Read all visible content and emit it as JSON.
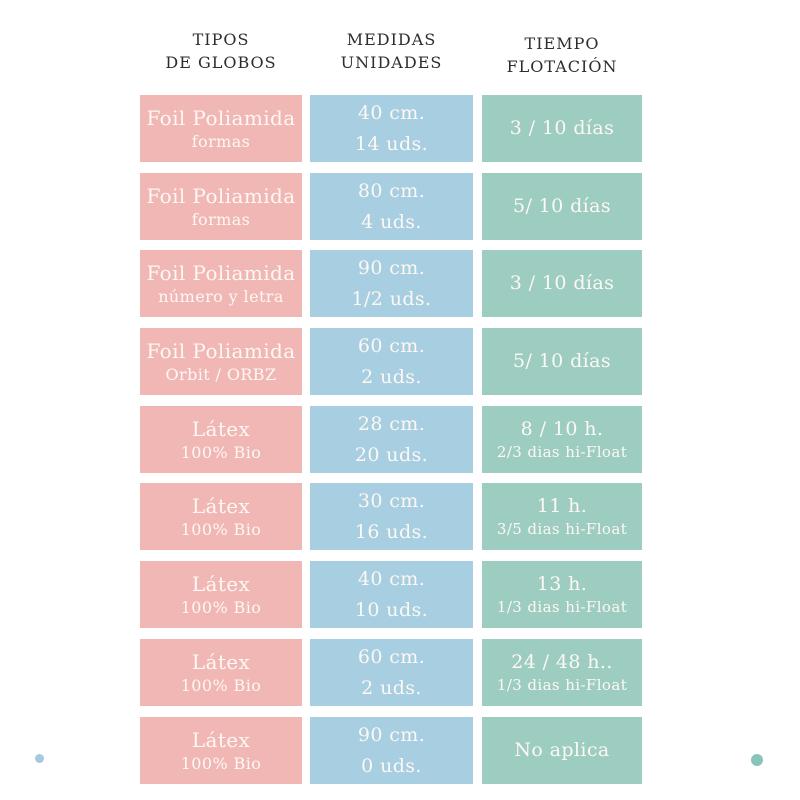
{
  "header": {
    "col1": [
      "TIPOS",
      "DE GLOBOS"
    ],
    "col2": [
      "MEDIDAS",
      "UNIDADES"
    ],
    "col3": [
      "TIEMPO",
      "FLOTACIÓN"
    ]
  },
  "table": {
    "rows": [
      {
        "type": [
          "Foil Poliamida",
          "formas"
        ],
        "medidas": [
          "40 cm.",
          "14 uds."
        ],
        "tiempo": [
          "3 / 10 días",
          ""
        ]
      },
      {
        "type": [
          "Foil Poliamida",
          "formas"
        ],
        "medidas": [
          "80 cm.",
          "4 uds."
        ],
        "tiempo": [
          "5/ 10 días",
          ""
        ]
      },
      {
        "type": [
          "Foil Poliamida",
          "número y letra"
        ],
        "medidas": [
          "90 cm.",
          "1/2 uds."
        ],
        "tiempo": [
          "3 / 10 días",
          ""
        ]
      },
      {
        "type": [
          "Foil Poliamida",
          "Orbit / ORBZ"
        ],
        "medidas": [
          "60 cm.",
          "2 uds."
        ],
        "tiempo": [
          "5/ 10 días",
          ""
        ]
      },
      {
        "type": [
          "Látex",
          "100% Bio"
        ],
        "medidas": [
          "28 cm.",
          "20 uds."
        ],
        "tiempo": [
          "8 / 10 h.",
          "2/3 dias hi-Float"
        ]
      },
      {
        "type": [
          "Látex",
          "100% Bio"
        ],
        "medidas": [
          "30 cm.",
          "16 uds."
        ],
        "tiempo": [
          "11 h.",
          "3/5 dias hi-Float"
        ]
      },
      {
        "type": [
          "Látex",
          "100% Bio"
        ],
        "medidas": [
          "40 cm.",
          "10 uds."
        ],
        "tiempo": [
          "13 h.",
          "1/3 dias hi-Float"
        ]
      },
      {
        "type": [
          "Látex",
          "100% Bio"
        ],
        "medidas": [
          "60 cm.",
          "2 uds."
        ],
        "tiempo": [
          "24 / 48 h..",
          "1/3 dias hi-Float"
        ]
      },
      {
        "type": [
          "Látex",
          "100% Bio"
        ],
        "medidas": [
          "90 cm.",
          "0 uds."
        ],
        "tiempo": [
          "No aplica",
          ""
        ]
      }
    ]
  },
  "colors": {
    "pink": "#f1b7b5",
    "blue": "#a7cee1",
    "green": "#9dccc1",
    "header_text": "#2e2d2c",
    "cell_text": "#fdf8f4",
    "dot_left": "#a5cadf",
    "dot_right": "#8ac3b9"
  },
  "chart_data": {
    "type": "table",
    "title": "",
    "columns": [
      "TIPOS DE GLOBOS",
      "MEDIDAS UNIDADES",
      "TIEMPO FLOTACIÓN"
    ],
    "rows": [
      [
        "Foil Poliamida formas",
        "40 cm. 14 uds.",
        "3 / 10 días"
      ],
      [
        "Foil Poliamida formas",
        "80 cm. 4 uds.",
        "5/ 10 días"
      ],
      [
        "Foil Poliamida número y letra",
        "90 cm. 1/2 uds.",
        "3 / 10 días"
      ],
      [
        "Foil Poliamida Orbit / ORBZ",
        "60 cm. 2 uds.",
        "5/ 10 días"
      ],
      [
        "Látex 100% Bio",
        "28 cm. 20 uds.",
        "8 / 10 h. 2/3 dias hi-Float"
      ],
      [
        "Látex 100% Bio",
        "30 cm. 16 uds.",
        "11 h. 3/5 dias hi-Float"
      ],
      [
        "Látex 100% Bio",
        "40 cm. 10 uds.",
        "13 h. 1/3 dias hi-Float"
      ],
      [
        "Látex 100% Bio",
        "60 cm. 2 uds.",
        "24 / 48 h.. 1/3 dias hi-Float"
      ],
      [
        "Látex 100% Bio",
        "90 cm. 0 uds.",
        "No aplica"
      ]
    ]
  }
}
